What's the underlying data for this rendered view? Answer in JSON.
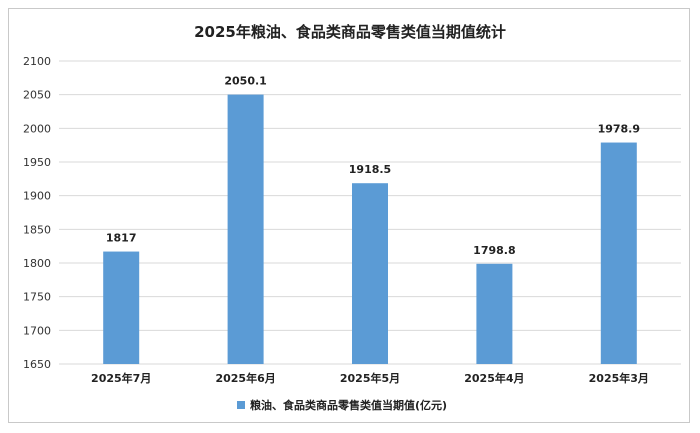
{
  "chart_data": {
    "type": "bar",
    "title": "2025年粮油、食品类商品零售类值当期值统计",
    "categories": [
      "2025年7月",
      "2025年6月",
      "2025年5月",
      "2025年4月",
      "2025年3月"
    ],
    "series": [
      {
        "name": "粮油、食品类商品零售类值当期值(亿元)",
        "values": [
          1817,
          2050.1,
          1918.5,
          1798.8,
          1978.9
        ],
        "labels": [
          "1817",
          "2050.1",
          "1918.5",
          "1798.8",
          "1978.9"
        ],
        "color": "#5b9bd5"
      }
    ],
    "ylim": [
      1650,
      2100
    ],
    "yticks": [
      1650,
      1700,
      1750,
      1800,
      1850,
      1900,
      1950,
      2000,
      2050,
      2100
    ],
    "grid": true,
    "legend_position": "bottom",
    "xlabel": "",
    "ylabel": ""
  },
  "colors": {
    "bar": "#5b9bd5",
    "grid": "#d9d9d9"
  }
}
